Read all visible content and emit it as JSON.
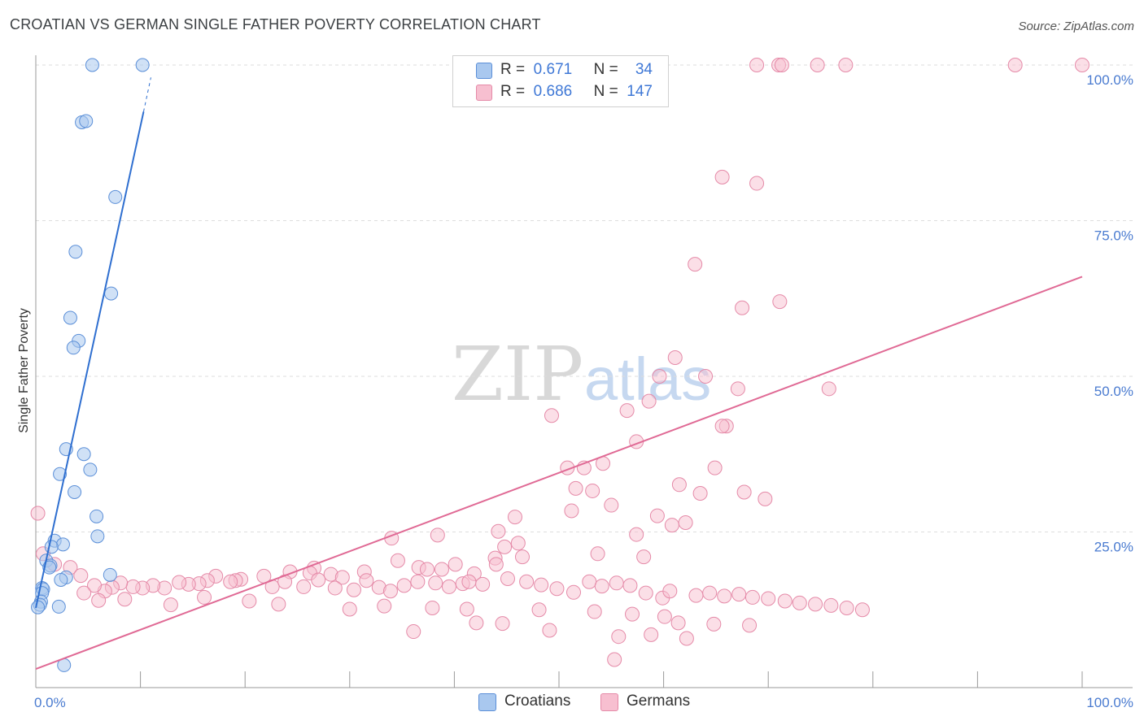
{
  "title": "CROATIAN VS GERMAN SINGLE FATHER POVERTY CORRELATION CHART",
  "source": "Source: ZipAtlas.com",
  "watermark": {
    "zip": "ZIP",
    "atlas": "atlas"
  },
  "legend": {
    "rows": [
      {
        "r_label": "R =",
        "r_value": "0.671",
        "n_label": "N =",
        "n_value": "34"
      },
      {
        "r_label": "R =",
        "r_value": "0.686",
        "n_label": "N =",
        "n_value": "147"
      }
    ]
  },
  "colors": {
    "croatians_fill": "#a9c8ef",
    "croatians_stroke": "#5b8fd8",
    "croatians_line": "#2f6fd0",
    "germans_fill": "#f7bfd0",
    "germans_stroke": "#e58aa8",
    "germans_line": "#e06a95",
    "grid": "#dddddd",
    "axis": "#999999"
  },
  "chart_data": {
    "type": "scatter",
    "title": "CROATIAN VS GERMAN SINGLE FATHER POVERTY CORRELATION CHART",
    "xlabel": "",
    "ylabel": "Single Father Poverty",
    "xlim": [
      0,
      100
    ],
    "ylim": [
      0,
      100
    ],
    "y_ticks": [
      {
        "value": 25,
        "label": "25.0%"
      },
      {
        "value": 50,
        "label": "50.0%"
      },
      {
        "value": 75,
        "label": "75.0%"
      },
      {
        "value": 100,
        "label": "100.0%"
      }
    ],
    "x_tick_labels": [
      {
        "value": 0,
        "label": "0.0%"
      },
      {
        "value": 100,
        "label": "100.0%"
      }
    ],
    "x_minor_ticks": [
      0,
      10,
      20,
      30,
      40,
      50,
      60,
      70,
      80,
      90,
      100
    ],
    "series": [
      {
        "name": "Croatians",
        "r": 0.671,
        "n": 34,
        "trend": {
          "x0": 0,
          "y0": 12.8,
          "x1": 10.3,
          "y1": 92.5,
          "dash_x1": 11.0,
          "dash_y1": 98.0
        },
        "points": [
          [
            5.4,
            100
          ],
          [
            10.2,
            100
          ],
          [
            4.4,
            90.8
          ],
          [
            4.8,
            91.0
          ],
          [
            7.6,
            78.8
          ],
          [
            3.8,
            70.0
          ],
          [
            7.2,
            63.3
          ],
          [
            3.3,
            59.4
          ],
          [
            4.1,
            55.7
          ],
          [
            3.6,
            54.6
          ],
          [
            2.9,
            38.3
          ],
          [
            4.6,
            37.5
          ],
          [
            5.2,
            35.0
          ],
          [
            2.3,
            34.3
          ],
          [
            3.7,
            31.4
          ],
          [
            5.8,
            27.5
          ],
          [
            5.9,
            24.3
          ],
          [
            1.8,
            23.6
          ],
          [
            2.6,
            23.0
          ],
          [
            1.5,
            22.6
          ],
          [
            1.0,
            20.4
          ],
          [
            1.4,
            19.6
          ],
          [
            1.3,
            19.3
          ],
          [
            7.1,
            18.1
          ],
          [
            2.9,
            17.7
          ],
          [
            2.4,
            17.3
          ],
          [
            0.6,
            16.0
          ],
          [
            0.7,
            15.8
          ],
          [
            0.6,
            15.2
          ],
          [
            0.5,
            13.8
          ],
          [
            0.4,
            13.3
          ],
          [
            0.2,
            12.9
          ],
          [
            2.2,
            13.0
          ],
          [
            2.7,
            3.6
          ]
        ]
      },
      {
        "name": "Germans",
        "r": 0.686,
        "n": 147,
        "trend": {
          "x0": 0,
          "y0": 3.0,
          "x1": 100,
          "y1": 66.0
        },
        "points": [
          [
            68.9,
            100
          ],
          [
            71.0,
            100
          ],
          [
            71.3,
            100
          ],
          [
            74.7,
            100
          ],
          [
            77.4,
            100
          ],
          [
            93.6,
            100
          ],
          [
            100,
            100
          ],
          [
            65.6,
            82.0
          ],
          [
            68.9,
            81.0
          ],
          [
            63.0,
            68.0
          ],
          [
            71.1,
            62.0
          ],
          [
            67.5,
            61.0
          ],
          [
            61.1,
            53.0
          ],
          [
            59.6,
            50.0
          ],
          [
            64.0,
            50.0
          ],
          [
            67.1,
            48.0
          ],
          [
            75.8,
            48.0
          ],
          [
            58.6,
            46.0
          ],
          [
            56.5,
            44.5
          ],
          [
            49.3,
            43.7
          ],
          [
            66.0,
            42.0
          ],
          [
            65.6,
            42.0
          ],
          [
            57.4,
            39.5
          ],
          [
            54.2,
            36.0
          ],
          [
            50.8,
            35.3
          ],
          [
            52.4,
            35.3
          ],
          [
            64.9,
            35.3
          ],
          [
            61.5,
            32.6
          ],
          [
            51.6,
            32.0
          ],
          [
            53.2,
            31.6
          ],
          [
            63.5,
            31.2
          ],
          [
            67.7,
            31.4
          ],
          [
            69.7,
            30.3
          ],
          [
            55.0,
            29.3
          ],
          [
            51.2,
            28.4
          ],
          [
            59.4,
            27.6
          ],
          [
            45.8,
            27.4
          ],
          [
            62.1,
            26.5
          ],
          [
            60.8,
            26.1
          ],
          [
            44.2,
            25.1
          ],
          [
            57.4,
            24.6
          ],
          [
            38.4,
            24.5
          ],
          [
            46.1,
            23.2
          ],
          [
            34.0,
            24.0
          ],
          [
            44.8,
            22.6
          ],
          [
            43.9,
            20.8
          ],
          [
            38.8,
            19.0
          ],
          [
            24.3,
            18.6
          ],
          [
            53.7,
            21.5
          ],
          [
            46.5,
            21.0
          ],
          [
            58.1,
            21.0
          ],
          [
            36.6,
            19.3
          ],
          [
            26.6,
            19.2
          ],
          [
            31.4,
            18.6
          ],
          [
            0.2,
            28.0
          ],
          [
            44.0,
            19.8
          ],
          [
            41.9,
            18.3
          ],
          [
            0.7,
            21.5
          ],
          [
            1.8,
            19.8
          ],
          [
            3.3,
            19.3
          ],
          [
            4.3,
            18.0
          ],
          [
            34.6,
            20.4
          ],
          [
            40.1,
            19.8
          ],
          [
            37.4,
            19.0
          ],
          [
            28.2,
            18.2
          ],
          [
            29.3,
            17.7
          ],
          [
            17.2,
            17.9
          ],
          [
            21.8,
            17.9
          ],
          [
            26.2,
            18.4
          ],
          [
            19.6,
            17.4
          ],
          [
            19.1,
            17.2
          ],
          [
            18.6,
            17.0
          ],
          [
            16.4,
            17.2
          ],
          [
            15.6,
            16.7
          ],
          [
            14.6,
            16.6
          ],
          [
            13.7,
            16.9
          ],
          [
            12.3,
            16.0
          ],
          [
            11.2,
            16.4
          ],
          [
            10.2,
            16.0
          ],
          [
            9.3,
            16.2
          ],
          [
            8.1,
            16.8
          ],
          [
            7.3,
            16.1
          ],
          [
            6.6,
            15.5
          ],
          [
            5.6,
            16.4
          ],
          [
            4.6,
            15.2
          ],
          [
            22.6,
            16.2
          ],
          [
            23.8,
            17.0
          ],
          [
            25.6,
            16.2
          ],
          [
            27.0,
            17.3
          ],
          [
            28.6,
            16.0
          ],
          [
            30.4,
            15.7
          ],
          [
            31.6,
            17.2
          ],
          [
            32.8,
            16.1
          ],
          [
            33.9,
            15.5
          ],
          [
            35.2,
            16.4
          ],
          [
            36.5,
            17.0
          ],
          [
            38.2,
            16.8
          ],
          [
            39.5,
            16.2
          ],
          [
            40.8,
            16.7
          ],
          [
            41.4,
            17.0
          ],
          [
            42.7,
            16.6
          ],
          [
            45.1,
            17.5
          ],
          [
            46.9,
            17.0
          ],
          [
            48.3,
            16.5
          ],
          [
            49.8,
            15.9
          ],
          [
            51.4,
            15.3
          ],
          [
            52.9,
            17.0
          ],
          [
            54.1,
            16.3
          ],
          [
            55.5,
            16.8
          ],
          [
            56.8,
            16.4
          ],
          [
            58.3,
            15.2
          ],
          [
            59.9,
            14.4
          ],
          [
            60.6,
            15.5
          ],
          [
            63.1,
            14.8
          ],
          [
            64.4,
            15.2
          ],
          [
            65.8,
            14.7
          ],
          [
            67.2,
            15.0
          ],
          [
            68.5,
            14.5
          ],
          [
            70.0,
            14.3
          ],
          [
            71.6,
            13.9
          ],
          [
            73.0,
            13.6
          ],
          [
            74.5,
            13.4
          ],
          [
            76.0,
            13.2
          ],
          [
            77.5,
            12.8
          ],
          [
            79.0,
            12.5
          ],
          [
            6.0,
            14.0
          ],
          [
            8.5,
            14.2
          ],
          [
            12.9,
            13.3
          ],
          [
            16.1,
            14.5
          ],
          [
            20.4,
            13.9
          ],
          [
            23.2,
            13.4
          ],
          [
            30.0,
            12.6
          ],
          [
            33.3,
            13.1
          ],
          [
            37.9,
            12.8
          ],
          [
            41.2,
            12.6
          ],
          [
            48.1,
            12.5
          ],
          [
            53.4,
            12.2
          ],
          [
            57.0,
            11.8
          ],
          [
            60.1,
            11.4
          ],
          [
            61.4,
            10.4
          ],
          [
            64.8,
            10.2
          ],
          [
            68.2,
            10.0
          ],
          [
            49.1,
            9.2
          ],
          [
            58.8,
            8.5
          ],
          [
            62.2,
            7.9
          ],
          [
            55.7,
            8.2
          ],
          [
            42.1,
            10.4
          ],
          [
            36.1,
            9.0
          ],
          [
            44.6,
            10.3
          ],
          [
            55.3,
            4.5
          ]
        ]
      }
    ]
  },
  "bottom_legend": {
    "croatians": "Croatians",
    "germans": "Germans"
  }
}
